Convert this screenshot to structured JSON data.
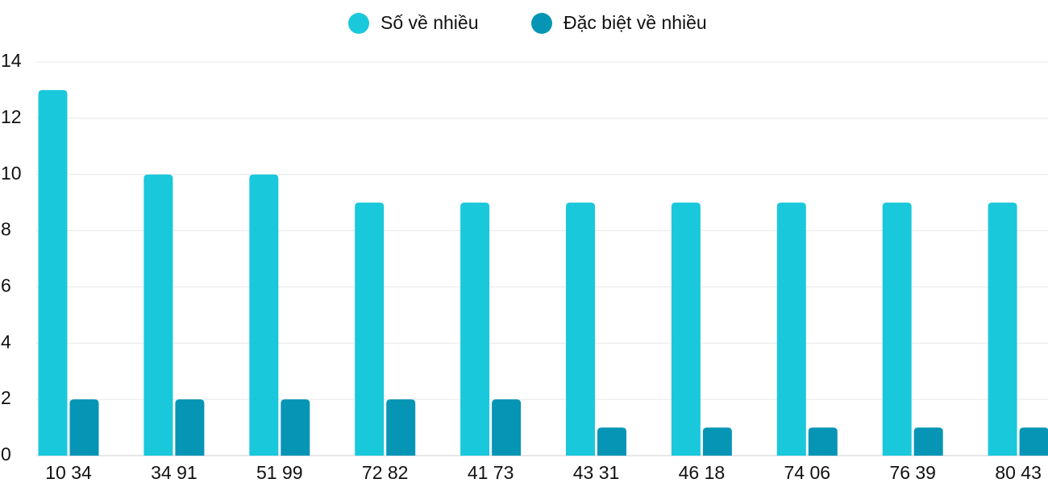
{
  "chart_data": {
    "type": "bar",
    "categories": [
      "10 34",
      "34 91",
      "51 99",
      "72 82",
      "41 73",
      "43 31",
      "46 18",
      "74 06",
      "76 39",
      "80 43"
    ],
    "series": [
      {
        "name": "Số về nhiều",
        "color": "#1ac8db",
        "values": [
          13,
          10,
          10,
          9,
          9,
          9,
          9,
          9,
          9,
          9
        ]
      },
      {
        "name": "Đặc biệt về nhiều",
        "color": "#0795b6",
        "values": [
          2,
          2,
          2,
          2,
          2,
          1,
          1,
          1,
          1,
          1
        ]
      }
    ],
    "ylim": [
      0,
      14
    ],
    "yticks": [
      0,
      2,
      4,
      6,
      8,
      10,
      12,
      14
    ],
    "grid": true,
    "legend": "top"
  }
}
